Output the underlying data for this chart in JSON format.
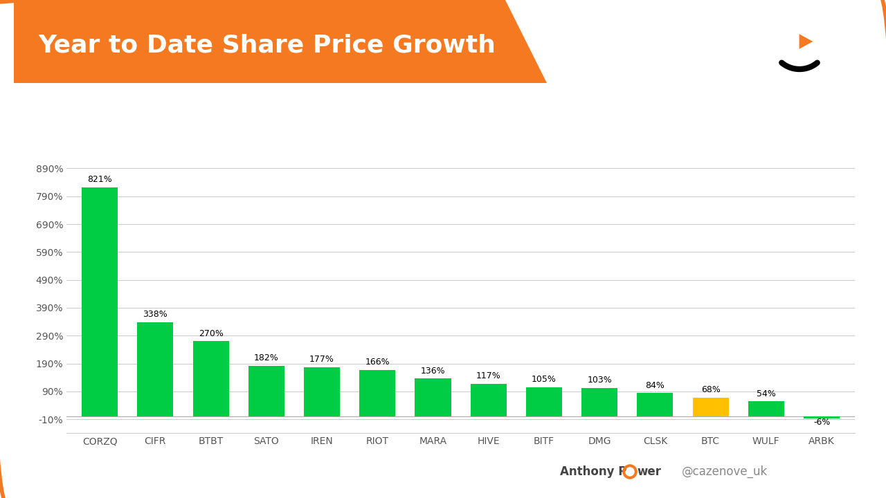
{
  "title": "Year to Date Share Price Growth",
  "categories": [
    "CORZQ",
    "CIFR",
    "BTBT",
    "SATO",
    "IREN",
    "RIOT",
    "MARA",
    "HIVE",
    "BITF",
    "DMG",
    "CLSK",
    "BTC",
    "WULF",
    "ARBK"
  ],
  "values": [
    821,
    338,
    270,
    182,
    177,
    166,
    136,
    117,
    105,
    103,
    84,
    68,
    54,
    -6
  ],
  "bar_colors": [
    "#00CC44",
    "#00CC44",
    "#00CC44",
    "#00CC44",
    "#00CC44",
    "#00CC44",
    "#00CC44",
    "#00CC44",
    "#00CC44",
    "#00CC44",
    "#00CC44",
    "#FFC000",
    "#00CC44",
    "#00CC44"
  ],
  "background_color": "#FFFFFF",
  "header_bg_color": "#F47920",
  "title_color": "#FFFFFF",
  "title_fontsize": 26,
  "ytick_labels": [
    "-10%",
    "90%",
    "190%",
    "290%",
    "390%",
    "490%",
    "590%",
    "690%",
    "790%",
    "890%"
  ],
  "ytick_values": [
    -10,
    90,
    190,
    290,
    390,
    490,
    590,
    690,
    790,
    890
  ],
  "ylim": [
    -60,
    940
  ],
  "grid_color": "#CCCCCC",
  "bar_label_fontsize": 9,
  "footer_text_right": "@cazenove_uk",
  "logo_color": "#F47920",
  "outer_border_color": "#F47920"
}
